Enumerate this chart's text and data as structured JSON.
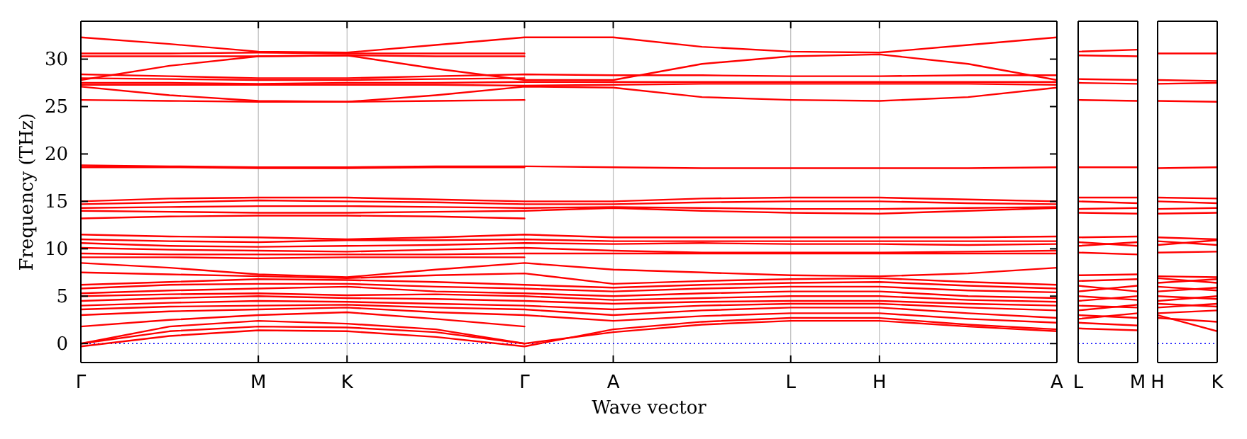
{
  "chart_data": [
    {
      "type": "line",
      "ylabel": "Frequency (THz)",
      "xlabel": "Wave vector",
      "categories": [
        "Γ",
        null,
        "M",
        "K",
        null,
        "Γ",
        "A",
        null,
        "L",
        "H",
        null,
        "A"
      ],
      "ylim": [
        -2,
        34
      ],
      "yticks": [
        0,
        5,
        10,
        15,
        20,
        25,
        30
      ],
      "grid": "x",
      "color": "#ff0000",
      "ref_lines": [
        {
          "axis": "y",
          "value": 0,
          "color": "#0000ff",
          "line_style": "dotted"
        }
      ],
      "series": [
        {
          "values": [
            32.3,
            31.6,
            30.8,
            30.7,
            31.5,
            32.3,
            32.3,
            31.3,
            30.8,
            30.7,
            31.5,
            32.3
          ]
        },
        {
          "values": [
            30.6,
            30.6,
            30.7,
            30.6,
            30.6,
            30.6,
            null,
            null,
            null,
            null,
            null,
            null
          ]
        },
        {
          "values": [
            30.3,
            30.3,
            30.3,
            30.4,
            30.3,
            30.3,
            null,
            null,
            null,
            null,
            null,
            null
          ]
        },
        {
          "values": [
            27.8,
            29.3,
            30.3,
            30.4,
            29.0,
            27.8,
            27.8,
            29.5,
            30.3,
            30.5,
            29.5,
            27.8
          ]
        },
        {
          "values": [
            28.4,
            28.2,
            28.0,
            28.0,
            28.2,
            28.4,
            28.3,
            28.3,
            28.2,
            28.2,
            28.3,
            28.3
          ]
        },
        {
          "values": [
            28.0,
            27.9,
            27.8,
            27.8,
            27.9,
            28.0,
            null,
            null,
            null,
            null,
            null,
            null
          ]
        },
        {
          "values": [
            27.5,
            27.5,
            27.4,
            27.5,
            27.5,
            27.6,
            27.6,
            27.6,
            27.6,
            27.6,
            27.6,
            27.6
          ]
        },
        {
          "values": [
            27.3,
            27.3,
            27.3,
            27.3,
            27.3,
            27.2,
            27.3,
            27.4,
            27.4,
            27.4,
            27.4,
            27.3
          ]
        },
        {
          "values": [
            27.1,
            26.2,
            25.6,
            25.5,
            26.2,
            27.1,
            27.0,
            26.0,
            25.7,
            25.6,
            26.0,
            27.0
          ]
        },
        {
          "values": [
            25.7,
            25.6,
            25.5,
            25.5,
            25.6,
            25.7,
            null,
            null,
            null,
            null,
            null,
            null
          ]
        },
        {
          "values": [
            18.8,
            18.7,
            18.6,
            18.6,
            18.7,
            18.7,
            18.6,
            18.5,
            18.5,
            18.5,
            18.5,
            18.6
          ]
        },
        {
          "values": [
            18.6,
            18.6,
            18.5,
            18.5,
            18.6,
            18.6,
            null,
            null,
            null,
            null,
            null,
            null
          ]
        },
        {
          "values": [
            15.0,
            15.3,
            15.4,
            15.4,
            15.2,
            15.0,
            15.0,
            15.3,
            15.4,
            15.4,
            15.2,
            15.0
          ]
        },
        {
          "values": [
            14.7,
            14.9,
            15.1,
            15.0,
            14.9,
            14.7,
            14.7,
            14.9,
            15.0,
            15.0,
            14.8,
            14.7
          ]
        },
        {
          "values": [
            14.3,
            14.4,
            14.5,
            14.5,
            14.4,
            14.3,
            14.4,
            14.3,
            14.2,
            14.2,
            14.3,
            14.4
          ]
        },
        {
          "values": [
            14.0,
            13.9,
            13.8,
            13.8,
            13.9,
            14.0,
            14.3,
            14.0,
            13.8,
            13.7,
            14.0,
            14.3
          ]
        },
        {
          "values": [
            13.2,
            13.4,
            13.5,
            13.5,
            13.4,
            13.2,
            null,
            null,
            null,
            null,
            null,
            null
          ]
        },
        {
          "values": [
            11.5,
            11.3,
            11.2,
            11.0,
            11.2,
            11.5,
            11.2,
            11.2,
            11.2,
            11.2,
            11.2,
            11.3
          ]
        },
        {
          "values": [
            11.0,
            10.8,
            10.7,
            10.9,
            10.9,
            11.0,
            10.8,
            10.8,
            10.8,
            10.8,
            10.8,
            10.8
          ]
        },
        {
          "values": [
            10.6,
            10.3,
            10.2,
            10.3,
            10.4,
            10.6,
            10.5,
            10.6,
            10.5,
            10.5,
            10.4,
            10.5
          ]
        },
        {
          "values": [
            10.1,
            9.9,
            9.8,
            9.7,
            9.9,
            10.1,
            9.8,
            9.6,
            9.6,
            9.6,
            9.7,
            9.8
          ]
        },
        {
          "values": [
            9.5,
            9.4,
            9.4,
            9.4,
            9.4,
            9.5,
            9.5,
            9.5,
            9.5,
            9.5,
            9.5,
            9.5
          ]
        },
        {
          "values": [
            9.1,
            9.1,
            9.0,
            9.1,
            9.1,
            9.1,
            null,
            null,
            null,
            null,
            null,
            null
          ]
        },
        {
          "values": [
            8.5,
            8.0,
            7.3,
            7.0,
            7.8,
            8.5,
            7.8,
            7.5,
            7.2,
            7.1,
            7.4,
            8.0
          ]
        },
        {
          "values": [
            7.5,
            7.3,
            7.1,
            6.9,
            7.2,
            7.4,
            6.3,
            6.6,
            6.8,
            6.9,
            6.5,
            6.2
          ]
        },
        {
          "values": [
            6.2,
            6.5,
            6.8,
            6.7,
            6.5,
            6.2,
            5.9,
            6.2,
            6.4,
            6.5,
            6.1,
            5.8
          ]
        },
        {
          "values": [
            5.8,
            6.2,
            6.3,
            6.3,
            6.0,
            5.8,
            5.5,
            5.8,
            6.0,
            6.0,
            5.6,
            5.4
          ]
        },
        {
          "values": [
            5.3,
            5.6,
            5.8,
            6.0,
            5.5,
            5.3,
            5.0,
            5.3,
            5.5,
            5.5,
            5.0,
            4.8
          ]
        },
        {
          "values": [
            5.0,
            5.2,
            5.3,
            5.1,
            5.2,
            5.0,
            4.6,
            4.8,
            5.0,
            5.0,
            4.6,
            4.4
          ]
        },
        {
          "values": [
            4.5,
            4.8,
            5.0,
            4.8,
            4.7,
            4.5,
            4.2,
            4.4,
            4.5,
            4.5,
            4.2,
            4.0
          ]
        },
        {
          "values": [
            4.0,
            4.3,
            4.5,
            4.4,
            4.2,
            4.0,
            3.6,
            4.0,
            4.2,
            4.2,
            3.8,
            3.5
          ]
        },
        {
          "values": [
            3.6,
            3.9,
            4.0,
            4.1,
            3.8,
            3.6,
            3.0,
            3.5,
            3.8,
            3.8,
            3.2,
            2.7
          ]
        },
        {
          "values": [
            3.0,
            3.4,
            3.6,
            3.8,
            3.3,
            3.0,
            2.4,
            2.9,
            3.2,
            3.2,
            2.6,
            2.2
          ]
        },
        {
          "values": [
            1.8,
            2.5,
            3.0,
            3.3,
            2.6,
            1.8,
            null,
            null,
            null,
            null,
            null,
            null
          ]
        },
        {
          "values": [
            0,
            1.8,
            2.4,
            2.1,
            1.5,
            0,
            null,
            null,
            null,
            null,
            null,
            null
          ]
        },
        {
          "values": [
            0,
            1.3,
            1.8,
            1.7,
            1.2,
            0,
            1.2,
            2.0,
            2.4,
            2.4,
            1.8,
            1.3
          ]
        },
        {
          "values": [
            -0.3,
            0.8,
            1.4,
            1.3,
            0.7,
            -0.3,
            1.5,
            2.3,
            2.7,
            2.7,
            2.0,
            1.5
          ]
        }
      ]
    },
    {
      "type": "line",
      "categories": [
        "L",
        "M"
      ],
      "ylim": [
        -2,
        34
      ],
      "yticks": [
        0,
        5,
        10,
        15,
        20,
        25,
        30
      ],
      "tick_labels": "x",
      "color": "#ff0000",
      "ref_lines": [
        {
          "axis": "y",
          "value": 0,
          "color": "#0000ff",
          "line_style": "dotted"
        }
      ],
      "series": [
        {
          "values": [
            30.8,
            31.0
          ]
        },
        {
          "values": [
            30.4,
            30.3
          ]
        },
        {
          "values": [
            27.9,
            27.8
          ]
        },
        {
          "values": [
            27.5,
            27.4
          ]
        },
        {
          "values": [
            25.7,
            25.6
          ]
        },
        {
          "values": [
            18.6,
            18.6
          ]
        },
        {
          "values": [
            15.4,
            15.4
          ]
        },
        {
          "values": [
            15.0,
            14.8
          ]
        },
        {
          "values": [
            14.2,
            14.3
          ]
        },
        {
          "values": [
            13.8,
            13.7
          ]
        },
        {
          "values": [
            11.2,
            11.3
          ]
        },
        {
          "values": [
            10.7,
            10.3
          ]
        },
        {
          "values": [
            10.3,
            10.7
          ]
        },
        {
          "values": [
            9.6,
            9.4
          ]
        },
        {
          "values": [
            7.2,
            7.3
          ]
        },
        {
          "values": [
            6.6,
            6.8
          ]
        },
        {
          "values": [
            6.1,
            5.5
          ]
        },
        {
          "values": [
            5.5,
            6.1
          ]
        },
        {
          "values": [
            5.0,
            4.6
          ]
        },
        {
          "values": [
            4.5,
            5.0
          ]
        },
        {
          "values": [
            4.0,
            3.8
          ]
        },
        {
          "values": [
            3.5,
            4.1
          ]
        },
        {
          "values": [
            3.0,
            2.7
          ]
        },
        {
          "values": [
            2.6,
            3.2
          ]
        },
        {
          "values": [
            2.2,
            1.9
          ]
        },
        {
          "values": [
            1.6,
            1.4
          ]
        }
      ]
    },
    {
      "type": "line",
      "categories": [
        "H",
        "K"
      ],
      "ylim": [
        -2,
        34
      ],
      "yticks": [
        0,
        5,
        10,
        15,
        20,
        25,
        30
      ],
      "tick_labels": "x",
      "color": "#ff0000",
      "ref_lines": [
        {
          "axis": "y",
          "value": 0,
          "color": "#0000ff",
          "line_style": "dotted"
        }
      ],
      "series": [
        {
          "values": [
            30.6,
            30.6
          ]
        },
        {
          "values": [
            27.8,
            27.7
          ]
        },
        {
          "values": [
            27.4,
            27.5
          ]
        },
        {
          "values": [
            25.6,
            25.5
          ]
        },
        {
          "values": [
            18.5,
            18.6
          ]
        },
        {
          "values": [
            15.4,
            15.3
          ]
        },
        {
          "values": [
            15.0,
            14.8
          ]
        },
        {
          "values": [
            14.2,
            14.3
          ]
        },
        {
          "values": [
            13.7,
            13.8
          ]
        },
        {
          "values": [
            11.2,
            11.0
          ]
        },
        {
          "values": [
            10.8,
            10.4
          ]
        },
        {
          "values": [
            10.4,
            10.9
          ]
        },
        {
          "values": [
            9.6,
            9.7
          ]
        },
        {
          "values": [
            7.1,
            7.0
          ]
        },
        {
          "values": [
            6.9,
            6.4
          ]
        },
        {
          "values": [
            6.4,
            6.8
          ]
        },
        {
          "values": [
            6.0,
            5.6
          ]
        },
        {
          "values": [
            5.5,
            5.9
          ]
        },
        {
          "values": [
            5.0,
            4.7
          ]
        },
        {
          "values": [
            4.5,
            5.0
          ]
        },
        {
          "values": [
            4.2,
            3.9
          ]
        },
        {
          "values": [
            3.8,
            4.2
          ]
        },
        {
          "values": [
            3.2,
            3.5
          ]
        },
        {
          "values": [
            3.0,
            1.3
          ]
        },
        {
          "values": [
            2.7,
            2.3
          ]
        }
      ]
    }
  ]
}
